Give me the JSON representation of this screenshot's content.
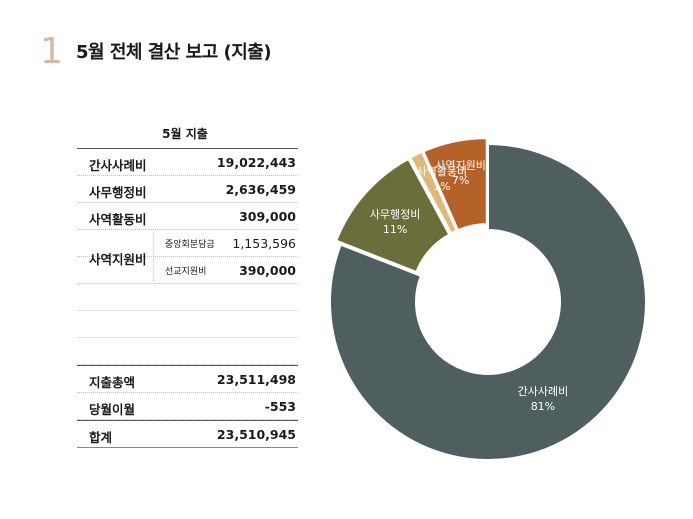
{
  "header": {
    "slide_number": "1",
    "title": "5월 전체 결산 보고 (지출)"
  },
  "table": {
    "caption": "5월 지출",
    "rows": [
      {
        "label": "간사사례비",
        "value": "19,022,443"
      },
      {
        "label": "사무행정비",
        "value": "2,636,459"
      },
      {
        "label": "사역활동비",
        "value": "309,000"
      }
    ],
    "group": {
      "label": "사역지원비",
      "items": [
        {
          "label": "중앙회분담금",
          "value": "1,153,596"
        },
        {
          "label": "선교지원비",
          "value": "390,000"
        }
      ]
    },
    "summary": [
      {
        "label": "지출총액",
        "value": "23,511,498"
      },
      {
        "label": "당월이월",
        "value": "-553"
      }
    ],
    "total": {
      "label": "합계",
      "value": "23,510,945"
    }
  },
  "chart_data": {
    "type": "pie",
    "title": "",
    "slices": [
      {
        "label": "간사사례비",
        "percent_label": "81%",
        "value": 19022443,
        "color": "#4f5e5e"
      },
      {
        "label": "사무행정비",
        "percent_label": "11%",
        "value": 2636459,
        "color": "#6b6e3a"
      },
      {
        "label": "사역활동비",
        "percent_label": "1%",
        "value": 309000,
        "color": "#e0b97a"
      },
      {
        "label": "사역지원비",
        "percent_label": "7%",
        "value": 1543596,
        "color": "#b5622a"
      }
    ]
  }
}
